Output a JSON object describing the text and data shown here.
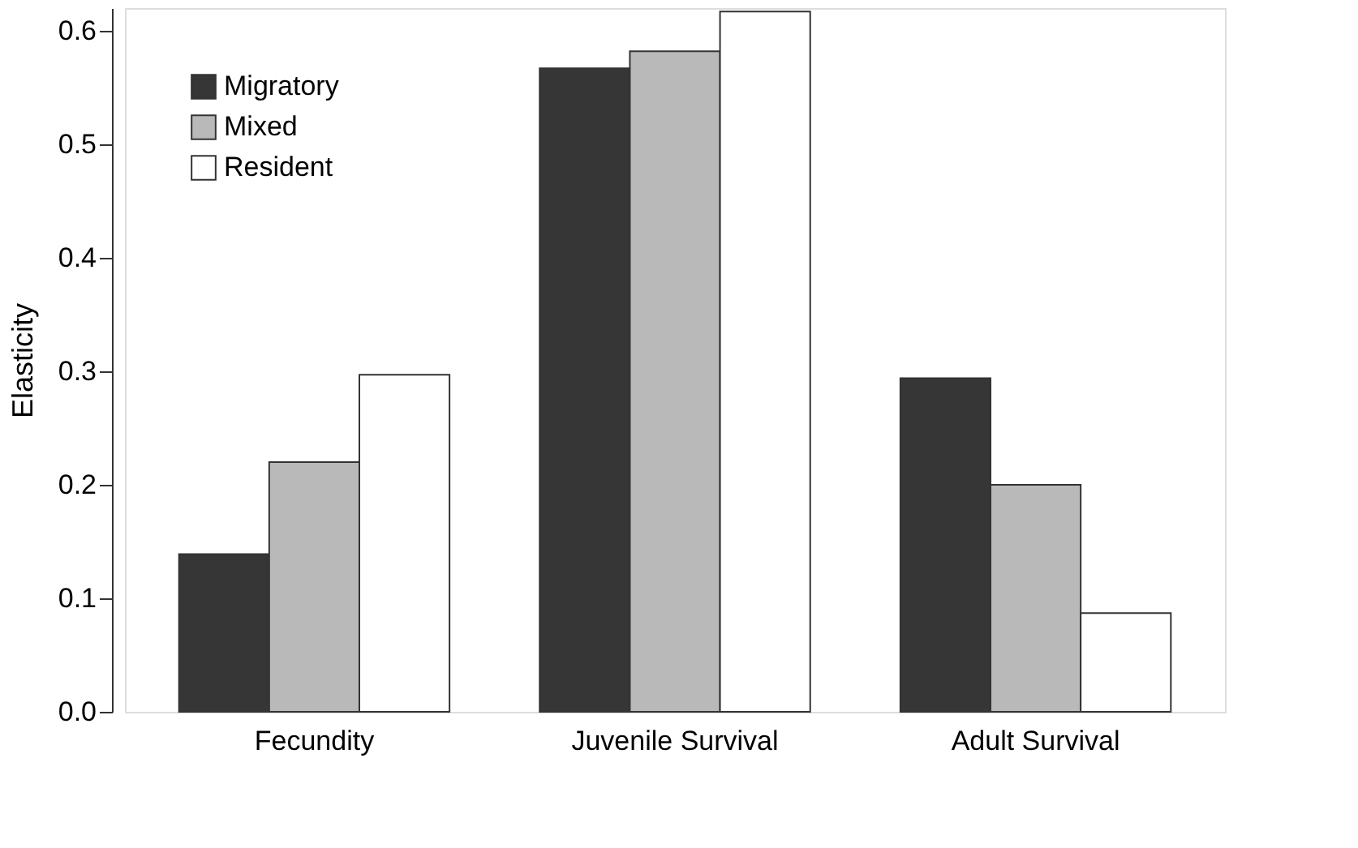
{
  "chart_data": {
    "type": "bar",
    "ylabel": "Elasticity",
    "categories": [
      "Fecundity",
      "Juvenile Survival",
      "Adult Survival"
    ],
    "series": [
      {
        "name": "Migratory",
        "color": "#363636",
        "values": [
          0.139,
          0.567,
          0.294
        ]
      },
      {
        "name": "Mixed",
        "color": "#b9b9b9",
        "values": [
          0.22,
          0.582,
          0.2
        ]
      },
      {
        "name": "Resident",
        "color": "#ffffff",
        "values": [
          0.297,
          0.617,
          0.087
        ]
      }
    ],
    "ylim": [
      0,
      0.62
    ],
    "yticks": [
      {
        "value": 0,
        "label": "0.0"
      },
      0.1,
      0.2,
      0.3,
      0.4,
      0.5,
      0.6
    ],
    "grid": false,
    "legend": "top left"
  }
}
